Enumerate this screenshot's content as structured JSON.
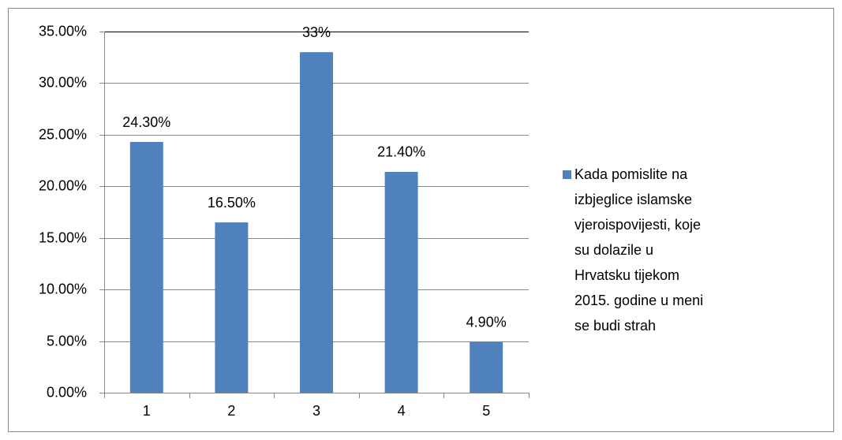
{
  "chart_data": {
    "type": "bar",
    "categories": [
      "1",
      "2",
      "3",
      "4",
      "5"
    ],
    "series": [
      {
        "name": "Kada pomislite na izbjeglice islamske vjeroispovijesti, koje su dolazile u Hrvatsku tijekom 2015. godine u meni se budi strah",
        "color": "#4f81bd",
        "values": [
          24.3,
          16.5,
          33,
          21.4,
          4.9
        ],
        "value_labels": [
          "24.30%",
          "16.50%",
          "33%",
          "21.40%",
          "4.90%"
        ]
      }
    ],
    "ylim": [
      0,
      35
    ],
    "yticks": [
      {
        "value": 0,
        "label": "0.00%"
      },
      {
        "value": 5,
        "label": "5.00%"
      },
      {
        "value": 10,
        "label": "10.00%"
      },
      {
        "value": 15,
        "label": "15.00%"
      },
      {
        "value": 20,
        "label": "20.00%"
      },
      {
        "value": 25,
        "label": "25.00%"
      },
      {
        "value": 30,
        "label": "30.00%"
      },
      {
        "value": 35,
        "label": "35.00%"
      }
    ],
    "grid": true,
    "legend": "right"
  }
}
